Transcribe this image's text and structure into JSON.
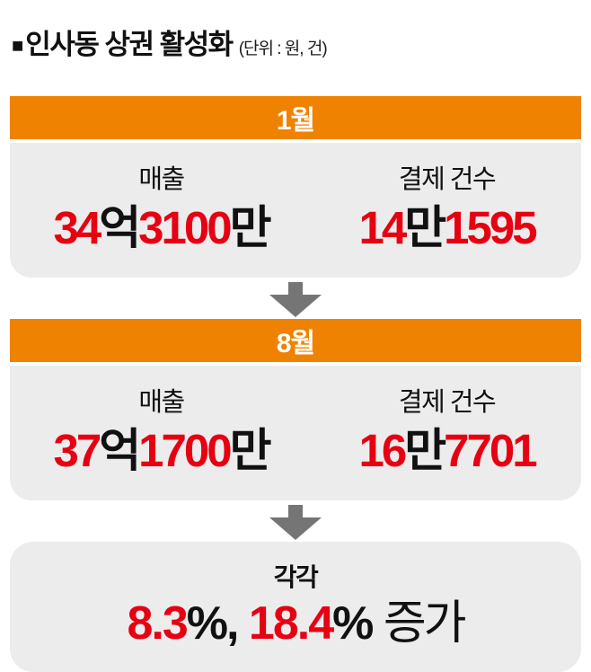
{
  "title": {
    "bullet": "■",
    "text": "인사동 상권 활성화",
    "unit": "(단위 : 원, 건)"
  },
  "colors": {
    "accent_orange": "#ef8200",
    "value_red": "#e60012",
    "card_gray": "#ececec",
    "arrow_gray": "#757575"
  },
  "cards": [
    {
      "month": "1월",
      "metrics": [
        {
          "label": "매출",
          "parts": [
            {
              "text": "34"
            },
            {
              "text": "억"
            },
            {
              "text": "3100"
            },
            {
              "text": "만"
            }
          ]
        },
        {
          "label": "결제 건수",
          "parts": [
            {
              "text": "14"
            },
            {
              "text": "만"
            },
            {
              "text": "1595"
            }
          ]
        }
      ]
    },
    {
      "month": "8월",
      "metrics": [
        {
          "label": "매출",
          "parts": [
            {
              "text": "37"
            },
            {
              "text": "억"
            },
            {
              "text": "1700"
            },
            {
              "text": "만"
            }
          ]
        },
        {
          "label": "결제 건수",
          "parts": [
            {
              "text": "16"
            },
            {
              "text": "만"
            },
            {
              "text": "7701"
            }
          ]
        }
      ]
    }
  ],
  "summary": {
    "label": "각각",
    "parts": [
      {
        "text": "8.3"
      },
      {
        "text": "%, "
      },
      {
        "text": "18.4"
      },
      {
        "text": "% "
      },
      {
        "text": "증가"
      }
    ]
  },
  "chart_data": {
    "type": "table",
    "title": "인사동 상권 활성화",
    "unit": "원, 건",
    "categories": [
      "1월",
      "8월"
    ],
    "series": [
      {
        "name": "매출",
        "values": [
          3431000000,
          3717000000
        ],
        "labels": [
          "34억3100만",
          "37억1700만"
        ]
      },
      {
        "name": "결제 건수",
        "values": [
          141595,
          167701
        ],
        "labels": [
          "14만1595",
          "16만7701"
        ]
      }
    ],
    "annotations": [
      "각각 8.3%, 18.4% 증가"
    ],
    "change_pct": {
      "매출": 8.3,
      "결제 건수": 18.4
    }
  }
}
